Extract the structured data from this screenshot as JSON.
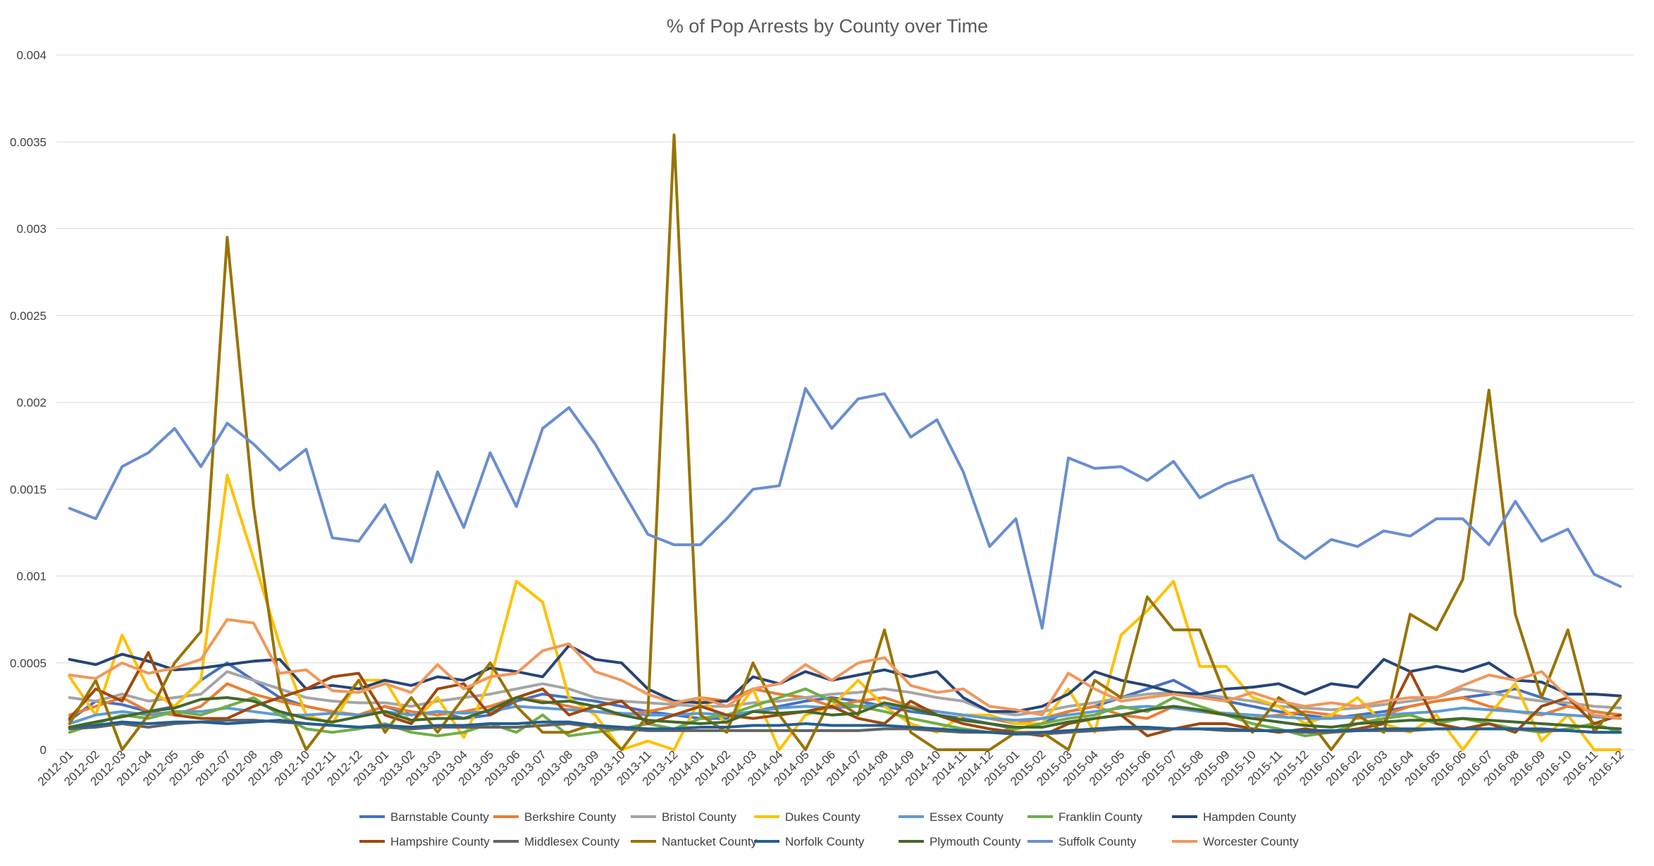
{
  "chart_data": {
    "type": "line",
    "title": "% of Pop Arrests by County over Time",
    "xlabel": "",
    "ylabel": "",
    "ylim": [
      0,
      0.004
    ],
    "yticks": [
      "0",
      "0.0005",
      "0.001",
      "0.0015",
      "0.002",
      "0.0025",
      "0.003",
      "0.0035",
      "0.004"
    ],
    "grid": "horizontal",
    "legend_position": "bottom",
    "x": [
      "2012-01",
      "2012-02",
      "2012-03",
      "2012-04",
      "2012-05",
      "2012-06",
      "2012-07",
      "2012-08",
      "2012-09",
      "2012-10",
      "2012-11",
      "2012-12",
      "2013-01",
      "2013-02",
      "2013-03",
      "2013-04",
      "2013-05",
      "2013-06",
      "2013-07",
      "2013-08",
      "2013-09",
      "2013-10",
      "2013-11",
      "2013-12",
      "2014-01",
      "2014-02",
      "2014-03",
      "2014-04",
      "2014-05",
      "2014-06",
      "2014-07",
      "2014-08",
      "2014-09",
      "2014-10",
      "2014-11",
      "2014-12",
      "2015-01",
      "2015-02",
      "2015-03",
      "2015-04",
      "2015-05",
      "2015-06",
      "2015-07",
      "2015-08",
      "2015-09",
      "2015-10",
      "2015-11",
      "2015-12",
      "2016-01",
      "2016-02",
      "2016-03",
      "2016-04",
      "2016-05",
      "2016-06",
      "2016-07",
      "2016-08",
      "2016-09",
      "2016-10",
      "2016-11",
      "2016-12"
    ],
    "series": [
      {
        "name": "Barnstable County",
        "color": "#4472C4",
        "values": [
          0.00017,
          0.00028,
          0.00026,
          0.00022,
          0.00025,
          0.0004,
          0.0005,
          0.0004,
          0.0003,
          0.00025,
          0.00022,
          0.0002,
          0.00025,
          0.0002,
          0.00022,
          0.00018,
          0.0002,
          0.00028,
          0.00032,
          0.0003,
          0.00028,
          0.00025,
          0.00022,
          0.0002,
          0.00018,
          0.00018,
          0.00022,
          0.00025,
          0.00028,
          0.0003,
          0.00028,
          0.00025,
          0.00022,
          0.0002,
          0.00018,
          0.00015,
          0.00012,
          0.00015,
          0.00022,
          0.00025,
          0.0003,
          0.00035,
          0.0004,
          0.00032,
          0.00028,
          0.00025,
          0.00022,
          0.0002,
          0.00018,
          0.0002,
          0.00022,
          0.00025,
          0.00028,
          0.0003,
          0.00032,
          0.00035,
          0.0003,
          0.00025,
          0.00022,
          0.0002
        ]
      },
      {
        "name": "Berkshire County",
        "color": "#ED7D31",
        "values": [
          0.0002,
          0.00025,
          0.0003,
          0.00022,
          0.0002,
          0.00025,
          0.00038,
          0.00032,
          0.00028,
          0.00025,
          0.00022,
          0.0002,
          0.00025,
          0.00022,
          0.0002,
          0.00022,
          0.00025,
          0.0003,
          0.00028,
          0.00025,
          0.00022,
          0.0002,
          0.00022,
          0.00025,
          0.0003,
          0.00028,
          0.00035,
          0.00032,
          0.0003,
          0.00025,
          0.00028,
          0.0003,
          0.00025,
          0.00022,
          0.0002,
          0.00018,
          0.00015,
          0.00018,
          0.00022,
          0.00025,
          0.0002,
          0.00018,
          0.00025,
          0.00022,
          0.0002,
          0.00018,
          0.0002,
          0.00022,
          0.0002,
          0.00018,
          0.0002,
          0.00025,
          0.00028,
          0.0003,
          0.00025,
          0.00022,
          0.0002,
          0.00025,
          0.00022,
          0.0002
        ]
      },
      {
        "name": "Bristol County",
        "color": "#A5A5A5",
        "values": [
          0.0003,
          0.00028,
          0.00032,
          0.00028,
          0.0003,
          0.00032,
          0.00045,
          0.0004,
          0.00035,
          0.0003,
          0.00028,
          0.00027,
          0.00027,
          0.00025,
          0.00028,
          0.0003,
          0.00032,
          0.00035,
          0.00038,
          0.00035,
          0.0003,
          0.00028,
          0.00027,
          0.00026,
          0.00025,
          0.00025,
          0.00027,
          0.00028,
          0.0003,
          0.00032,
          0.00033,
          0.00035,
          0.00033,
          0.0003,
          0.00028,
          0.00022,
          0.0002,
          0.00022,
          0.00025,
          0.00027,
          0.0003,
          0.00032,
          0.00033,
          0.00032,
          0.0003,
          0.00028,
          0.00025,
          0.00024,
          0.00023,
          0.00024,
          0.00026,
          0.00028,
          0.0003,
          0.00035,
          0.00033,
          0.0003,
          0.00028,
          0.00027,
          0.00025,
          0.00024
        ]
      },
      {
        "name": "Dukes County",
        "color": "#FFC000",
        "values": [
          0.00042,
          0.0002,
          0.00066,
          0.00035,
          0.00025,
          0.0004,
          0.00158,
          0.0011,
          0.0006,
          0.0002,
          0.00015,
          0.0004,
          0.0004,
          0.00015,
          0.0003,
          7e-05,
          0.0004,
          0.00097,
          0.00085,
          0.0003,
          0.0002,
          0.0,
          5e-05,
          0.0,
          0.0003,
          0.00015,
          0.00035,
          0.0,
          0.0002,
          0.00025,
          0.0004,
          0.00025,
          0.00015,
          0.0001,
          0.0002,
          0.0002,
          0.00015,
          0.00015,
          0.00035,
          0.0001,
          0.00066,
          0.0008,
          0.00097,
          0.00048,
          0.00048,
          0.0003,
          0.00025,
          0.00015,
          0.0002,
          0.0003,
          0.00015,
          0.0001,
          0.0002,
          0.0,
          0.0002,
          0.00038,
          5e-05,
          0.0002,
          0.0,
          0.0
        ]
      },
      {
        "name": "Essex County",
        "color": "#5B9BD5",
        "values": [
          0.00015,
          0.0002,
          0.00022,
          0.0002,
          0.00022,
          0.00022,
          0.00024,
          0.00022,
          0.0002,
          0.0002,
          0.00021,
          0.0002,
          0.00022,
          0.0002,
          0.00022,
          0.00021,
          0.00022,
          0.00025,
          0.00024,
          0.00023,
          0.00022,
          0.00021,
          0.0002,
          0.0002,
          0.00021,
          0.0002,
          0.00022,
          0.00024,
          0.00025,
          0.00024,
          0.00025,
          0.00026,
          0.00024,
          0.00022,
          0.0002,
          0.00018,
          0.00017,
          0.00018,
          0.0002,
          0.00022,
          0.00024,
          0.00025,
          0.00024,
          0.00022,
          0.00021,
          0.0002,
          0.00019,
          0.00018,
          0.00018,
          0.00019,
          0.0002,
          0.00021,
          0.00022,
          0.00024,
          0.00023,
          0.00022,
          0.00021,
          0.0002,
          0.00019,
          0.00018
        ]
      },
      {
        "name": "Franklin County",
        "color": "#70AD47",
        "values": [
          0.0001,
          0.00015,
          0.0002,
          0.00018,
          0.00022,
          0.0002,
          0.00025,
          0.0003,
          0.0002,
          0.00012,
          0.0001,
          0.00012,
          0.00015,
          0.0001,
          8e-05,
          0.0001,
          0.00015,
          0.0001,
          0.0002,
          8e-05,
          0.0001,
          0.00012,
          0.00015,
          0.00012,
          0.00018,
          0.0002,
          0.00025,
          0.0003,
          0.00035,
          0.00028,
          0.00025,
          0.00022,
          0.00018,
          0.00015,
          0.00012,
          0.0001,
          0.00012,
          0.00015,
          0.00018,
          0.0002,
          0.00025,
          0.00022,
          0.0003,
          0.00025,
          0.0002,
          0.00015,
          0.00012,
          8e-05,
          0.0001,
          0.00015,
          0.00018,
          0.0002,
          0.00015,
          0.00018,
          0.00015,
          0.00012,
          0.0001,
          0.00012,
          0.00015,
          0.0001
        ]
      },
      {
        "name": "Hampden County",
        "color": "#264478",
        "values": [
          0.00052,
          0.00049,
          0.00055,
          0.00051,
          0.00046,
          0.00047,
          0.00049,
          0.00051,
          0.00052,
          0.00035,
          0.00037,
          0.00035,
          0.0004,
          0.00037,
          0.00042,
          0.0004,
          0.00047,
          0.00045,
          0.00042,
          0.0006,
          0.00052,
          0.0005,
          0.00035,
          0.00028,
          0.00027,
          0.00028,
          0.00042,
          0.00038,
          0.00045,
          0.0004,
          0.00043,
          0.00046,
          0.00042,
          0.00045,
          0.0003,
          0.00022,
          0.00022,
          0.00025,
          0.00032,
          0.00045,
          0.0004,
          0.00037,
          0.00033,
          0.00032,
          0.00035,
          0.00036,
          0.00038,
          0.00032,
          0.00038,
          0.00036,
          0.00052,
          0.00045,
          0.00048,
          0.00045,
          0.0005,
          0.0004,
          0.00039,
          0.00032,
          0.00032,
          0.00031
        ]
      },
      {
        "name": "Hampshire County",
        "color": "#9E480E",
        "values": [
          0.00018,
          0.00035,
          0.00028,
          0.00056,
          0.0002,
          0.00018,
          0.00018,
          0.00025,
          0.0003,
          0.00035,
          0.00042,
          0.00044,
          0.0002,
          0.00015,
          0.00035,
          0.00038,
          0.0002,
          0.0003,
          0.00035,
          0.0002,
          0.00025,
          0.00028,
          0.00015,
          0.0002,
          0.00025,
          0.0002,
          0.00018,
          0.0002,
          0.00022,
          0.00025,
          0.00018,
          0.00015,
          0.00028,
          0.0002,
          0.00015,
          0.00012,
          0.0001,
          8e-05,
          0.00015,
          0.00018,
          0.0002,
          8e-05,
          0.00012,
          0.00015,
          0.00015,
          0.00012,
          0.0001,
          0.00012,
          0.0001,
          0.00012,
          0.00015,
          0.00045,
          0.00015,
          0.00012,
          0.00015,
          0.0001,
          0.00025,
          0.0003,
          0.00015,
          0.0002
        ]
      },
      {
        "name": "Middlesex County",
        "color": "#636363",
        "values": [
          0.00012,
          0.00013,
          0.00015,
          0.00013,
          0.00015,
          0.00016,
          0.00017,
          0.00017,
          0.00016,
          0.00015,
          0.00014,
          0.00013,
          0.00013,
          0.00012,
          0.00013,
          0.00013,
          0.00013,
          0.00013,
          0.00014,
          0.00015,
          0.00013,
          0.00012,
          0.00011,
          0.00011,
          0.00011,
          0.00011,
          0.00011,
          0.00011,
          0.00011,
          0.00011,
          0.00011,
          0.00012,
          0.00012,
          0.00011,
          0.0001,
          0.0001,
          9e-05,
          9e-05,
          0.0001,
          0.00011,
          0.00012,
          0.00012,
          0.00012,
          0.00012,
          0.00011,
          0.00011,
          0.00011,
          0.0001,
          0.0001,
          0.00011,
          0.00011,
          0.00011,
          0.00012,
          0.00012,
          0.00012,
          0.00012,
          0.00011,
          0.00011,
          0.0001,
          0.0001
        ]
      },
      {
        "name": "Nantucket County",
        "color": "#997300",
        "values": [
          0.00015,
          0.0004,
          0.0,
          0.0002,
          0.0005,
          0.00068,
          0.00295,
          0.0014,
          0.00035,
          0.0,
          0.0002,
          0.0004,
          0.0001,
          0.0003,
          0.0001,
          0.0003,
          0.0005,
          0.00025,
          0.0001,
          0.0001,
          0.00015,
          0.0,
          0.0002,
          0.00354,
          0.0002,
          0.0001,
          0.0005,
          0.0002,
          0.0,
          0.0003,
          0.0002,
          0.00069,
          0.0001,
          0.0,
          0.0,
          0.0,
          0.0001,
          0.0001,
          0.0,
          0.0004,
          0.0003,
          0.00088,
          0.00069,
          0.00069,
          0.0003,
          0.0001,
          0.0003,
          0.0002,
          0.0,
          0.0002,
          0.0001,
          0.00078,
          0.00069,
          0.00098,
          0.00207,
          0.00078,
          0.0003,
          0.00069,
          0.0001,
          0.0003
        ]
      },
      {
        "name": "Norfolk County",
        "color": "#255E91",
        "values": [
          0.00013,
          0.00014,
          0.00016,
          0.00015,
          0.00016,
          0.00016,
          0.00015,
          0.00016,
          0.00017,
          0.00015,
          0.00014,
          0.00013,
          0.00014,
          0.00013,
          0.00014,
          0.00014,
          0.00015,
          0.00015,
          0.00016,
          0.00016,
          0.00014,
          0.00013,
          0.00012,
          0.00012,
          0.00013,
          0.00013,
          0.00014,
          0.00014,
          0.00015,
          0.00014,
          0.00014,
          0.00014,
          0.00013,
          0.00012,
          0.00011,
          0.0001,
          9e-05,
          0.0001,
          0.00011,
          0.00012,
          0.00013,
          0.00013,
          0.00012,
          0.00012,
          0.00012,
          0.00011,
          0.00011,
          0.00011,
          0.00011,
          0.00011,
          0.00012,
          0.00012,
          0.00012,
          0.00012,
          0.00012,
          0.00012,
          0.00012,
          0.00011,
          0.0001,
          0.0001
        ]
      },
      {
        "name": "Plymouth County",
        "color": "#43682B",
        "values": [
          0.00013,
          0.00016,
          0.00019,
          0.00022,
          0.00024,
          0.00029,
          0.0003,
          0.00028,
          0.00022,
          0.00018,
          0.00016,
          0.00019,
          0.00022,
          0.00017,
          0.00018,
          0.00018,
          0.00023,
          0.0003,
          0.00027,
          0.00028,
          0.00025,
          0.0002,
          0.00017,
          0.00016,
          0.00015,
          0.00016,
          0.00022,
          0.00021,
          0.00022,
          0.0002,
          0.00021,
          0.00027,
          0.00024,
          0.0002,
          0.00017,
          0.00015,
          0.00013,
          0.00013,
          0.00016,
          0.00018,
          0.0002,
          0.00023,
          0.00025,
          0.00023,
          0.0002,
          0.00018,
          0.00016,
          0.00014,
          0.00013,
          0.00015,
          0.00016,
          0.00017,
          0.00017,
          0.00018,
          0.00017,
          0.00016,
          0.00015,
          0.00014,
          0.00013,
          0.00012
        ]
      },
      {
        "name": "Suffolk County",
        "color": "#698ED0",
        "values": [
          0.00139,
          0.00133,
          0.00163,
          0.00171,
          0.00185,
          0.00163,
          0.00188,
          0.00176,
          0.00161,
          0.00173,
          0.00122,
          0.0012,
          0.00141,
          0.00108,
          0.0016,
          0.00128,
          0.00171,
          0.0014,
          0.00185,
          0.00197,
          0.00176,
          0.0015,
          0.00124,
          0.00118,
          0.00118,
          0.00133,
          0.0015,
          0.00152,
          0.00208,
          0.00185,
          0.00202,
          0.00205,
          0.0018,
          0.0019,
          0.0016,
          0.00117,
          0.00133,
          0.0007,
          0.00168,
          0.00162,
          0.00163,
          0.00155,
          0.00166,
          0.00145,
          0.00153,
          0.00158,
          0.00121,
          0.0011,
          0.00121,
          0.00117,
          0.00126,
          0.00123,
          0.00133,
          0.00133,
          0.00118,
          0.00143,
          0.0012,
          0.00127,
          0.00101,
          0.00094
        ]
      },
      {
        "name": "Worcester County",
        "color": "#F1975A",
        "values": [
          0.00043,
          0.00041,
          0.0005,
          0.00044,
          0.00047,
          0.00052,
          0.00075,
          0.00073,
          0.00044,
          0.00046,
          0.00034,
          0.00033,
          0.00038,
          0.00033,
          0.00049,
          0.00035,
          0.00042,
          0.00044,
          0.00057,
          0.00061,
          0.00045,
          0.0004,
          0.00032,
          0.00027,
          0.0003,
          0.00025,
          0.00035,
          0.00038,
          0.00049,
          0.0004,
          0.0005,
          0.00053,
          0.00037,
          0.00033,
          0.00035,
          0.00025,
          0.00023,
          0.0002,
          0.00044,
          0.00035,
          0.00028,
          0.0003,
          0.00032,
          0.0003,
          0.00028,
          0.00033,
          0.00028,
          0.00025,
          0.00027,
          0.00025,
          0.00028,
          0.0003,
          0.0003,
          0.00037,
          0.00043,
          0.0004,
          0.00045,
          0.0003,
          0.0002,
          0.00018
        ]
      }
    ]
  }
}
